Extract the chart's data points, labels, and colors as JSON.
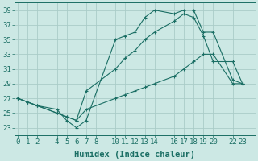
{
  "line1": {
    "x": [
      0,
      1,
      2,
      4,
      5,
      6,
      7,
      10,
      11,
      12,
      13,
      14,
      16,
      17,
      18,
      19,
      20,
      22,
      23
    ],
    "y": [
      27,
      26.5,
      26,
      25.5,
      24,
      23,
      24,
      35,
      35.5,
      36,
      38,
      39,
      38.5,
      39,
      39,
      36,
      36,
      29.5,
      29
    ]
  },
  "line2": {
    "x": [
      0,
      1,
      2,
      4,
      5,
      6,
      7,
      10,
      11,
      12,
      13,
      14,
      16,
      17,
      18,
      19,
      20,
      22,
      23
    ],
    "y": [
      27,
      26.5,
      26,
      25,
      24.5,
      24,
      28,
      31,
      32.5,
      33.5,
      35,
      36,
      37.5,
      38.5,
      38,
      35.5,
      32,
      32,
      29
    ]
  },
  "line3": {
    "x": [
      0,
      1,
      2,
      4,
      5,
      6,
      7,
      10,
      11,
      12,
      13,
      14,
      16,
      17,
      18,
      19,
      20,
      22,
      23
    ],
    "y": [
      27,
      26.5,
      26,
      25,
      24.5,
      24,
      25.5,
      27,
      27.5,
      28,
      28.5,
      29,
      30,
      31,
      32,
      33,
      33,
      29,
      29
    ]
  },
  "bg_color": "#cce8e4",
  "grid_color": "#aaccc8",
  "line_color": "#1a6e64",
  "xlabel": "Humidex (Indice chaleur)",
  "ylim": [
    22.0,
    40.0
  ],
  "yticks": [
    23,
    25,
    27,
    29,
    31,
    33,
    35,
    37,
    39
  ],
  "xticks": [
    0,
    1,
    2,
    4,
    5,
    6,
    7,
    8,
    10,
    11,
    12,
    13,
    14,
    16,
    17,
    18,
    19,
    20,
    22,
    23
  ],
  "xlim": [
    -0.3,
    24.3
  ],
  "label_fontsize": 7.5,
  "tick_fontsize": 6.5
}
